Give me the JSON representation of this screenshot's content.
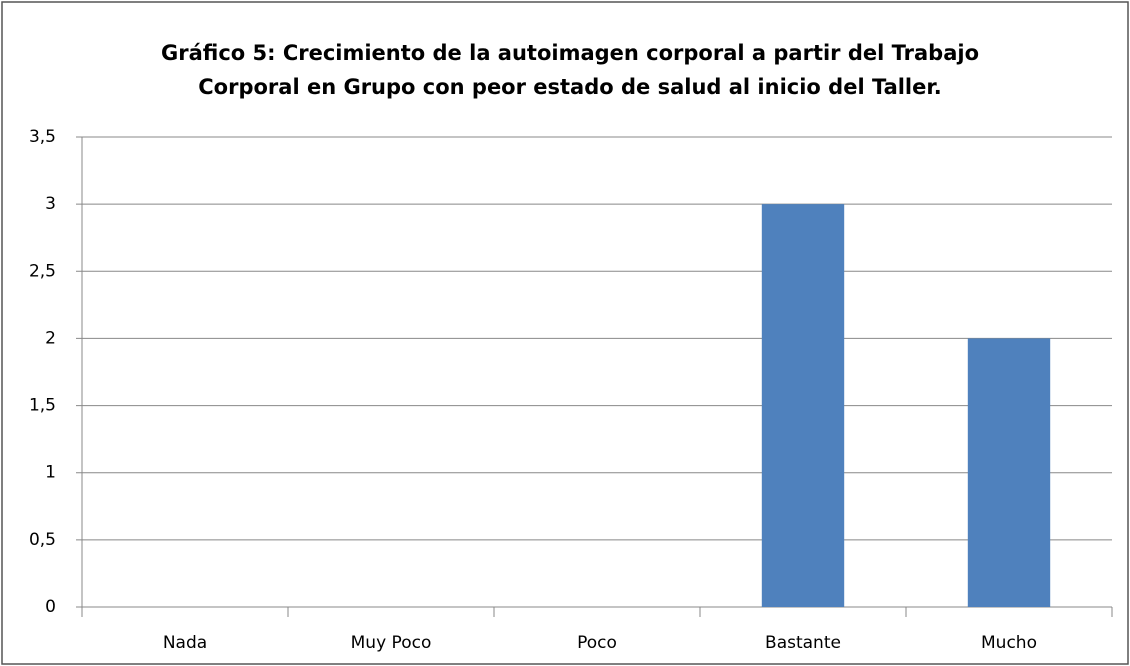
{
  "chart_data": {
    "type": "bar",
    "title": "Gráfico 5: Crecimiento de la autoimagen corporal a partir del Trabajo Corporal en Grupo con peor estado de salud al inicio del Taller.",
    "categories": [
      "Nada",
      "Muy Poco",
      "Poco",
      "Bastante",
      "Mucho"
    ],
    "values": [
      0,
      0,
      0,
      3,
      2
    ],
    "color": "#4f81bd",
    "ylim": [
      0,
      3.5
    ],
    "yticks": [
      0,
      {
        "value": 0.5,
        "label": "0,5"
      },
      1,
      {
        "value": 1.5,
        "label": "1,5"
      },
      2,
      {
        "value": 2.5,
        "label": "2,5"
      },
      3,
      {
        "value": 3.5,
        "label": "3,5"
      }
    ],
    "grid": true
  }
}
